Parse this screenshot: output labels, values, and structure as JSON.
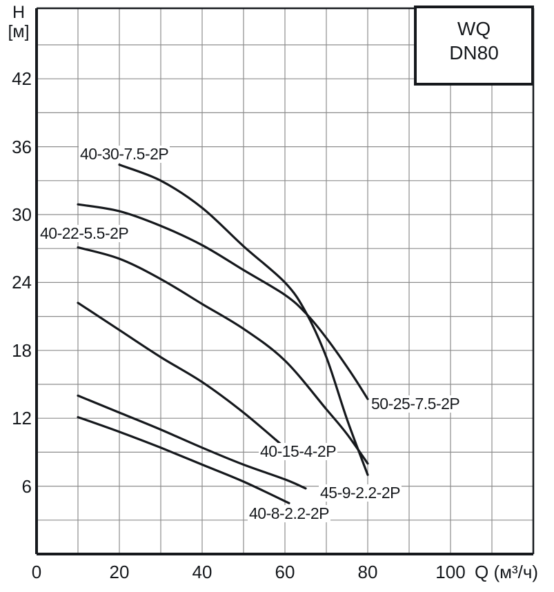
{
  "legend_box": {
    "line1": "WQ",
    "line2": "DN80"
  },
  "axes": {
    "y_title_line1": "H",
    "y_title_line2": "[м]",
    "x_unit_label": "Q (м³/ч)"
  },
  "colors": {
    "curve": "#15181c",
    "grid": "#8c8c8c",
    "frame": "#15181c",
    "background": "#ffffff",
    "text": "#15181c"
  },
  "chart_data": {
    "type": "line",
    "title": "WQ DN80",
    "xlabel": "Q (м³/ч)",
    "ylabel": "H [м]",
    "xlim": [
      0,
      120
    ],
    "ylim": [
      0,
      48
    ],
    "x_grid_step": 10,
    "y_grid_step": 3,
    "grid": true,
    "legend_position": "top-right",
    "xticks": [
      "0",
      "20",
      "40",
      "60",
      "80",
      "100"
    ],
    "xtick_values": [
      0,
      20,
      40,
      60,
      80,
      100
    ],
    "yticks": [
      "42",
      "36",
      "30",
      "24",
      "18",
      "12",
      "6"
    ],
    "ytick_values": [
      42,
      36,
      30,
      24,
      18,
      12,
      6
    ],
    "series": [
      {
        "label": "40-30-7.5-2P",
        "points": [
          [
            20,
            34.4
          ],
          [
            30,
            33.0
          ],
          [
            40,
            30.6
          ],
          [
            50,
            27.2
          ],
          [
            60,
            24.0
          ],
          [
            65,
            21.4
          ],
          [
            70,
            17.4
          ],
          [
            75,
            11.9
          ],
          [
            80,
            7.0
          ]
        ]
      },
      {
        "label": "40-22-5.5-2P",
        "points": [
          [
            10,
            27.1
          ],
          [
            20,
            26.1
          ],
          [
            30,
            24.3
          ],
          [
            40,
            22.1
          ],
          [
            50,
            19.9
          ],
          [
            60,
            17.1
          ],
          [
            70,
            12.8
          ],
          [
            75,
            10.6
          ],
          [
            80,
            8.0
          ]
        ]
      },
      {
        "label": "50-25-7.5-2P",
        "points": [
          [
            10,
            30.9
          ],
          [
            20,
            30.3
          ],
          [
            30,
            29.0
          ],
          [
            40,
            27.3
          ],
          [
            50,
            25.1
          ],
          [
            60,
            22.9
          ],
          [
            65,
            21.3
          ],
          [
            70,
            19.1
          ],
          [
            76,
            16.0
          ],
          [
            80,
            13.7
          ]
        ]
      },
      {
        "label": "40-15-4-2P",
        "points": [
          [
            10,
            22.2
          ],
          [
            20,
            19.8
          ],
          [
            30,
            17.4
          ],
          [
            40,
            15.2
          ],
          [
            50,
            12.5
          ],
          [
            60,
            9.4
          ]
        ]
      },
      {
        "label": "45-9-2.2-2P",
        "points": [
          [
            10,
            14.0
          ],
          [
            20,
            12.5
          ],
          [
            30,
            11.0
          ],
          [
            40,
            9.4
          ],
          [
            50,
            7.9
          ],
          [
            60,
            6.6
          ],
          [
            65,
            5.8
          ]
        ]
      },
      {
        "label": "40-8-2.2-2P",
        "points": [
          [
            10,
            12.1
          ],
          [
            20,
            10.8
          ],
          [
            30,
            9.4
          ],
          [
            40,
            7.9
          ],
          [
            50,
            6.4
          ],
          [
            61,
            4.5
          ]
        ]
      }
    ]
  }
}
